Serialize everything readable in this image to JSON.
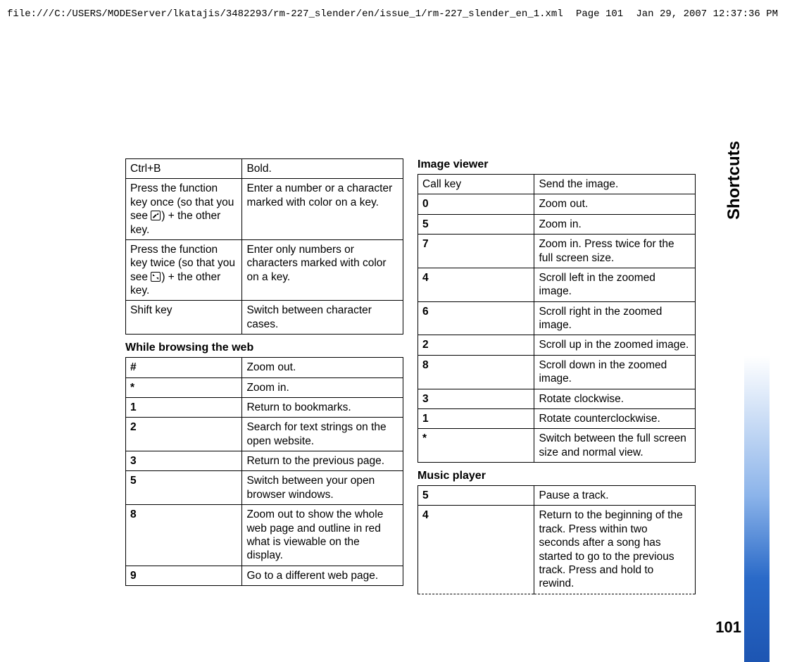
{
  "header": {
    "path": "file:///C:/USERS/MODEServer/lkatajis/3482293/rm-227_slender/en/issue_1/rm-227_slender_en_1.xml",
    "page": "Page 101",
    "datetime": "Jan 29, 2007 12:37:36 PM"
  },
  "side": {
    "label": "Shortcuts",
    "page_number": "101"
  },
  "text_editing": {
    "rows": [
      {
        "key": "Ctrl+B",
        "val": "Bold."
      },
      {
        "key_pre": "Press the function key once (so that you see ",
        "key_post": ") + the other key.",
        "icon": "single",
        "val": "Enter a number or a character marked with color on a key."
      },
      {
        "key_pre": "Press the function key twice (so that you see ",
        "key_post": ") + the other key.",
        "icon": "double",
        "val": "Enter only numbers or characters marked with color on a key."
      },
      {
        "key": "Shift key",
        "val": "Switch between character cases."
      }
    ]
  },
  "browsing": {
    "title": "While browsing the web",
    "rows": [
      {
        "key": "#",
        "val": "Zoom out."
      },
      {
        "key": "*",
        "val": "Zoom in."
      },
      {
        "key": "1",
        "val": "Return to bookmarks."
      },
      {
        "key": "2",
        "val": "Search for text strings on the open website."
      },
      {
        "key": "3",
        "val": "Return to the previous page."
      },
      {
        "key": "5",
        "val": "Switch between your open browser windows."
      },
      {
        "key": "8",
        "val": "Zoom out to show the whole web page and outline in red what is viewable on the display."
      },
      {
        "key": "9",
        "val": "Go to a different web page."
      }
    ]
  },
  "image_viewer": {
    "title": "Image viewer",
    "rows": [
      {
        "key": "Call key",
        "val": "Send the image."
      },
      {
        "key": "0",
        "val": "Zoom out."
      },
      {
        "key": "5",
        "val": "Zoom in."
      },
      {
        "key": "7",
        "val": "Zoom in. Press twice for the full screen size."
      },
      {
        "key": "4",
        "val": "Scroll left in the zoomed image."
      },
      {
        "key": "6",
        "val": "Scroll right in the zoomed image."
      },
      {
        "key": "2",
        "val": "Scroll up in the zoomed image."
      },
      {
        "key": "8",
        "val": "Scroll down in the zoomed image."
      },
      {
        "key": "3",
        "val": "Rotate clockwise."
      },
      {
        "key": "1",
        "val": "Rotate counterclockwise."
      },
      {
        "key": "*",
        "val": "Switch between the full screen size and normal view."
      }
    ]
  },
  "music_player": {
    "title": "Music player",
    "rows": [
      {
        "key": "5",
        "val": "Pause a track."
      },
      {
        "key": "4",
        "val": "Return to the beginning of the track. Press within two seconds after a song has started to go to the previous track. Press and hold to rewind."
      }
    ]
  }
}
